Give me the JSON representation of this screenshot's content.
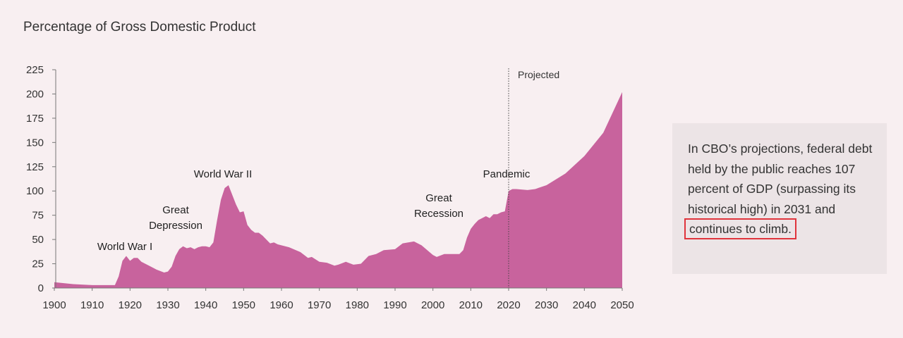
{
  "chart_data": {
    "type": "area",
    "title": "Percentage of Gross Domestic Product",
    "x": [
      1900,
      1905,
      1910,
      1915,
      1916,
      1917,
      1918,
      1919,
      1920,
      1921,
      1922,
      1923,
      1925,
      1927,
      1929,
      1930,
      1931,
      1932,
      1933,
      1934,
      1935,
      1936,
      1937,
      1938,
      1939,
      1940,
      1941,
      1942,
      1943,
      1944,
      1945,
      1946,
      1947,
      1948,
      1949,
      1950,
      1951,
      1952,
      1953,
      1954,
      1955,
      1956,
      1957,
      1958,
      1959,
      1960,
      1962,
      1965,
      1967,
      1968,
      1970,
      1972,
      1974,
      1975,
      1977,
      1979,
      1981,
      1983,
      1985,
      1987,
      1990,
      1992,
      1995,
      1997,
      2000,
      2001,
      2003,
      2005,
      2007,
      2008,
      2009,
      2010,
      2011,
      2012,
      2013,
      2014,
      2015,
      2016,
      2017,
      2018,
      2019,
      2020,
      2021,
      2022,
      2025,
      2027,
      2030,
      2035,
      2040,
      2045,
      2050
    ],
    "values": [
      6,
      4,
      3,
      3,
      3,
      12,
      28,
      33,
      28,
      31,
      31,
      27,
      23,
      19,
      16,
      17,
      22,
      33,
      40,
      43,
      41,
      42,
      40,
      42,
      43,
      43,
      42,
      47,
      70,
      91,
      103,
      106,
      96,
      86,
      78,
      79,
      65,
      60,
      57,
      57,
      54,
      50,
      46,
      47,
      45,
      44,
      42,
      37,
      31,
      32,
      27,
      26,
      23,
      24,
      27,
      24,
      25,
      33,
      35,
      39,
      40,
      46,
      48,
      44,
      34,
      32,
      35,
      35,
      35,
      39,
      52,
      61,
      66,
      70,
      72,
      74,
      72,
      76,
      76,
      78,
      79,
      100,
      102,
      102,
      101,
      102,
      106,
      118,
      136,
      160,
      202
    ],
    "color": "#c8639d",
    "xlim": [
      1900,
      2050
    ],
    "ylim": [
      0,
      225
    ],
    "xticks": [
      1900,
      1910,
      1920,
      1930,
      1940,
      1950,
      1960,
      1970,
      1980,
      1990,
      2000,
      2010,
      2020,
      2030,
      2040,
      2050
    ],
    "yticks": [
      0,
      25,
      50,
      75,
      100,
      125,
      150,
      175,
      200,
      225
    ],
    "projection_start": 2020,
    "projection_label": "Projected",
    "annotations": [
      "World War I",
      "Great Depression",
      "World War II",
      "Great Recession",
      "Pandemic"
    ]
  },
  "sidebar": {
    "text": "In CBO’s projections, federal debt held by the public reaches 107 percent of GDP (surpassing its historical high) in 2031 and",
    "highlight": "continues to climb."
  }
}
